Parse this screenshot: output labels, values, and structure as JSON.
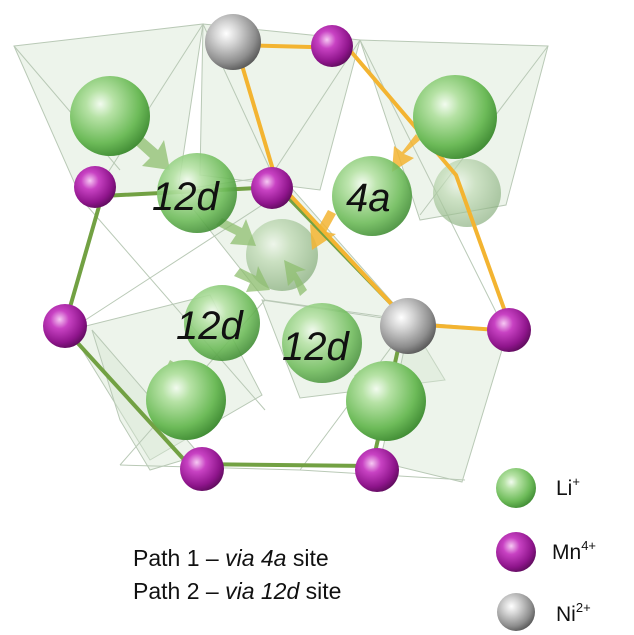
{
  "site_labels": {
    "site_12d_top": "12d",
    "site_4a": "4a",
    "site_12d_middle": "12d",
    "site_12d_right": "12d"
  },
  "legend": {
    "li": {
      "symbol": "Li",
      "charge": "+",
      "color": "#5cc04c"
    },
    "mn": {
      "symbol": "Mn",
      "charge": "4+",
      "color": "#a0159f"
    },
    "ni": {
      "symbol": "Ni",
      "charge": "2+",
      "color": "#9a9a9a"
    }
  },
  "paths": {
    "path1": {
      "prefix": "Path 1 – ",
      "via": "via 4a",
      "suffix": " site",
      "color": "#f3b431"
    },
    "path2": {
      "prefix": "Path 2 – ",
      "via": "via 12d",
      "suffix": " site",
      "color": "#72a143"
    }
  },
  "colors": {
    "polyhedra": "#d6e6d2",
    "arrow_green": "#8fbf70",
    "arrow_orange": "#f3b431"
  }
}
